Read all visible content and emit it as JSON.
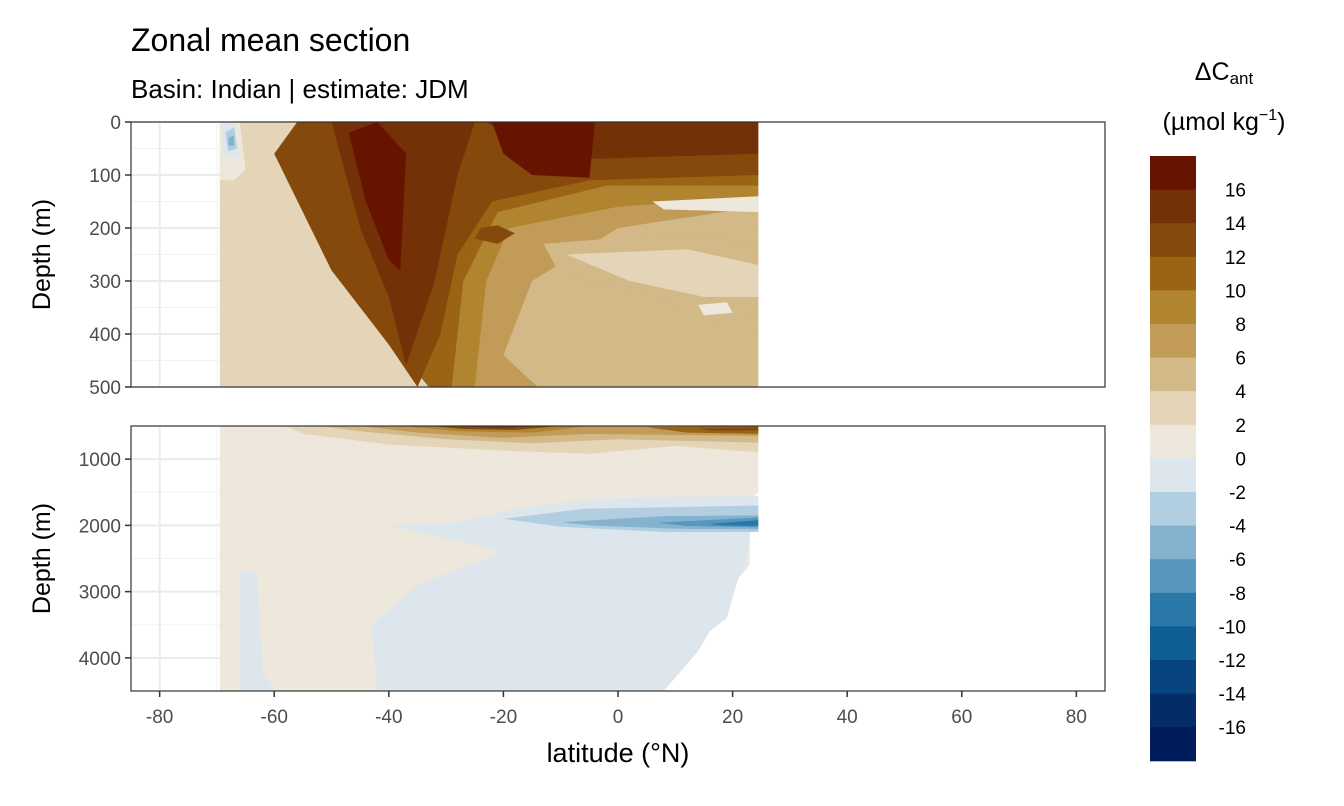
{
  "chart_data": {
    "type": "heatmap",
    "title": "Zonal mean section",
    "subtitle": "Basin: Indian | estimate: JDM",
    "xlabel": "latitude (°N)",
    "ylabel": "Depth (m)",
    "xlim": [
      -85,
      85
    ],
    "x_ticks": [
      -80,
      -60,
      -40,
      -20,
      0,
      20,
      40,
      60,
      80
    ],
    "x_tick_labels": [
      "-80",
      "-60",
      "-40",
      "-20",
      "0",
      "20",
      "40",
      "60",
      "80"
    ],
    "panels": [
      {
        "ylim": [
          0,
          500
        ],
        "y_ticks": [
          0,
          100,
          200,
          300,
          400,
          500
        ],
        "y_tick_labels": [
          "0",
          "100",
          "200",
          "300",
          "400",
          "500"
        ]
      },
      {
        "ylim": [
          500,
          4500
        ],
        "y_ticks": [
          1000,
          2000,
          3000,
          4000
        ],
        "y_tick_labels": [
          "1000",
          "2000",
          "3000",
          "4000"
        ]
      }
    ],
    "data_extent": {
      "lat_min": -69.5,
      "lat_max": 24.5
    },
    "grid": true,
    "legend": {
      "title_main": "ΔC",
      "title_sub": "ant",
      "unit_main": "(µmol kg",
      "unit_sup": "−1",
      "unit_close": ")",
      "position": "right",
      "levels": [
        "16",
        "14",
        "12",
        "10",
        "8",
        "6",
        "4",
        "2",
        "0",
        "-2",
        "-4",
        "-6",
        "-8",
        "-10",
        "-12",
        "-14",
        "-16"
      ],
      "colors": [
        "#661300",
        "#743006",
        "#854a0b",
        "#9b6414",
        "#b1842f",
        "#c29b58",
        "#d2b987",
        "#e5d5b8",
        "#eee7dc",
        "#dce6ec",
        "#b1cfe0",
        "#85b3cf",
        "#5797bd",
        "#2a78a9",
        "#0f5f95",
        "#074480",
        "#042c68",
        "#001c5b"
      ]
    }
  }
}
